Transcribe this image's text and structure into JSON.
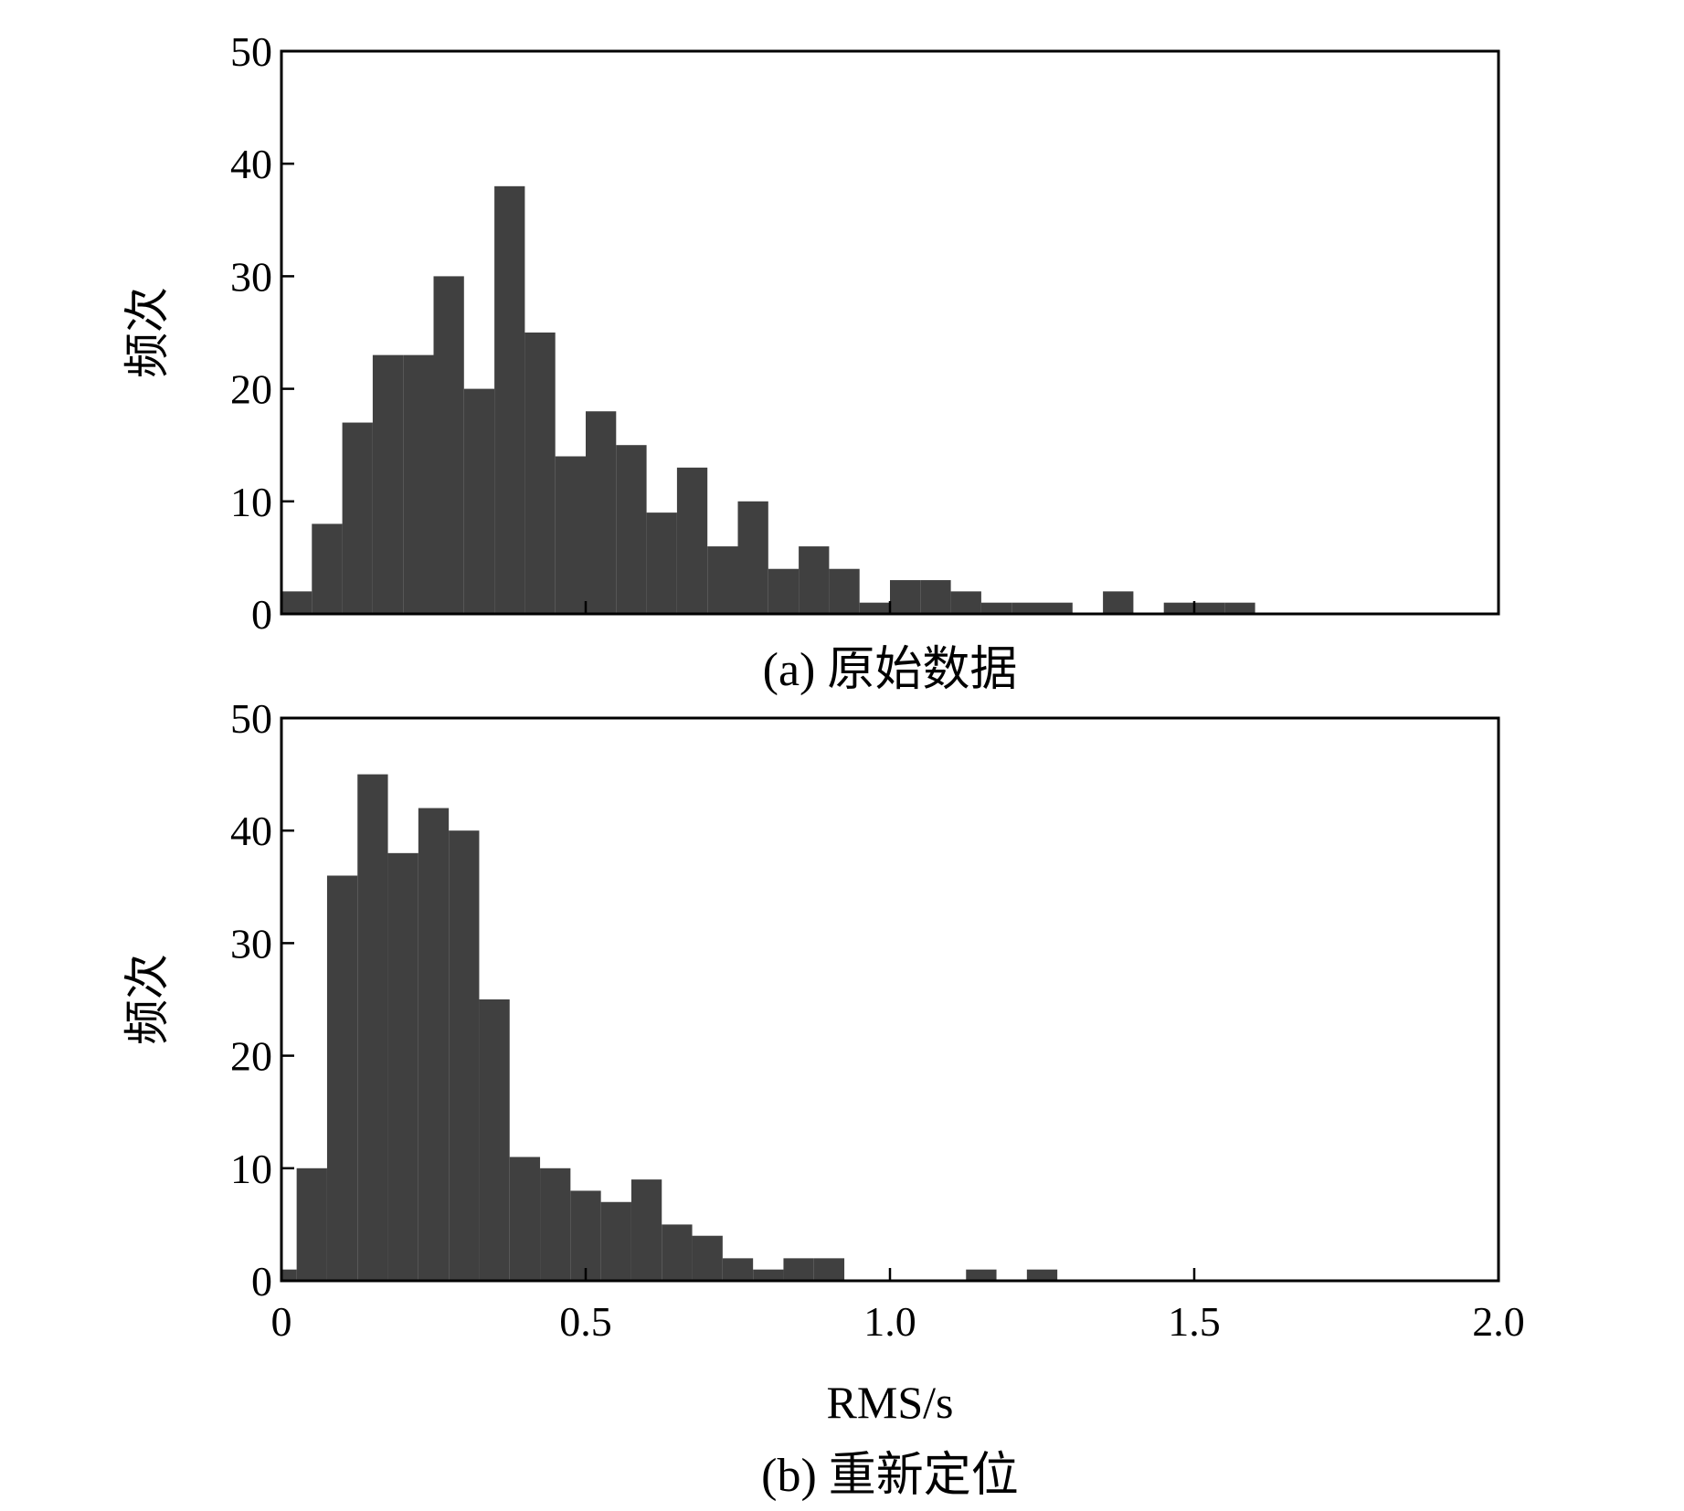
{
  "figure": {
    "xlabel": "RMS/s",
    "x_ticks": [
      "0",
      "0.5",
      "1.0",
      "1.5",
      "2.0"
    ],
    "y_ticks": [
      "0",
      "10",
      "20",
      "30",
      "40",
      "50"
    ]
  },
  "chart_data": [
    {
      "type": "bar",
      "title": "(a) 原始数据",
      "ylabel": "频次",
      "xlabel": "",
      "xlim": [
        0,
        2.0
      ],
      "ylim": [
        0,
        50
      ],
      "bin_width": 0.05,
      "bar_color": "#404040",
      "grid": false,
      "bins": [
        {
          "x": 0.025,
          "y": 2
        },
        {
          "x": 0.075,
          "y": 8
        },
        {
          "x": 0.125,
          "y": 17
        },
        {
          "x": 0.175,
          "y": 23
        },
        {
          "x": 0.225,
          "y": 23
        },
        {
          "x": 0.275,
          "y": 30
        },
        {
          "x": 0.325,
          "y": 20
        },
        {
          "x": 0.375,
          "y": 38
        },
        {
          "x": 0.425,
          "y": 25
        },
        {
          "x": 0.475,
          "y": 14
        },
        {
          "x": 0.525,
          "y": 18
        },
        {
          "x": 0.575,
          "y": 15
        },
        {
          "x": 0.625,
          "y": 9
        },
        {
          "x": 0.675,
          "y": 13
        },
        {
          "x": 0.725,
          "y": 6
        },
        {
          "x": 0.775,
          "y": 10
        },
        {
          "x": 0.825,
          "y": 4
        },
        {
          "x": 0.875,
          "y": 6
        },
        {
          "x": 0.925,
          "y": 4
        },
        {
          "x": 0.975,
          "y": 1
        },
        {
          "x": 1.025,
          "y": 3
        },
        {
          "x": 1.075,
          "y": 3
        },
        {
          "x": 1.125,
          "y": 2
        },
        {
          "x": 1.175,
          "y": 1
        },
        {
          "x": 1.225,
          "y": 1
        },
        {
          "x": 1.275,
          "y": 1
        },
        {
          "x": 1.375,
          "y": 2
        },
        {
          "x": 1.475,
          "y": 1
        },
        {
          "x": 1.525,
          "y": 1
        },
        {
          "x": 1.575,
          "y": 1
        }
      ]
    },
    {
      "type": "bar",
      "title": "(b) 重新定位",
      "ylabel": "频次",
      "xlabel": "RMS/s",
      "xlim": [
        0,
        2.0
      ],
      "ylim": [
        0,
        50
      ],
      "bin_width": 0.05,
      "bar_color": "#404040",
      "grid": false,
      "bins": [
        {
          "x": 0.0125,
          "y": 1,
          "w": 0.025
        },
        {
          "x": 0.05,
          "y": 10
        },
        {
          "x": 0.1,
          "y": 36
        },
        {
          "x": 0.15,
          "y": 45
        },
        {
          "x": 0.2,
          "y": 38
        },
        {
          "x": 0.25,
          "y": 42
        },
        {
          "x": 0.3,
          "y": 40
        },
        {
          "x": 0.35,
          "y": 25
        },
        {
          "x": 0.4,
          "y": 11
        },
        {
          "x": 0.45,
          "y": 10
        },
        {
          "x": 0.5,
          "y": 8
        },
        {
          "x": 0.55,
          "y": 7
        },
        {
          "x": 0.6,
          "y": 9
        },
        {
          "x": 0.65,
          "y": 5
        },
        {
          "x": 0.7,
          "y": 4
        },
        {
          "x": 0.75,
          "y": 2
        },
        {
          "x": 0.8,
          "y": 1
        },
        {
          "x": 0.85,
          "y": 2
        },
        {
          "x": 0.9,
          "y": 2
        },
        {
          "x": 1.15,
          "y": 1
        },
        {
          "x": 1.25,
          "y": 1
        }
      ]
    }
  ]
}
